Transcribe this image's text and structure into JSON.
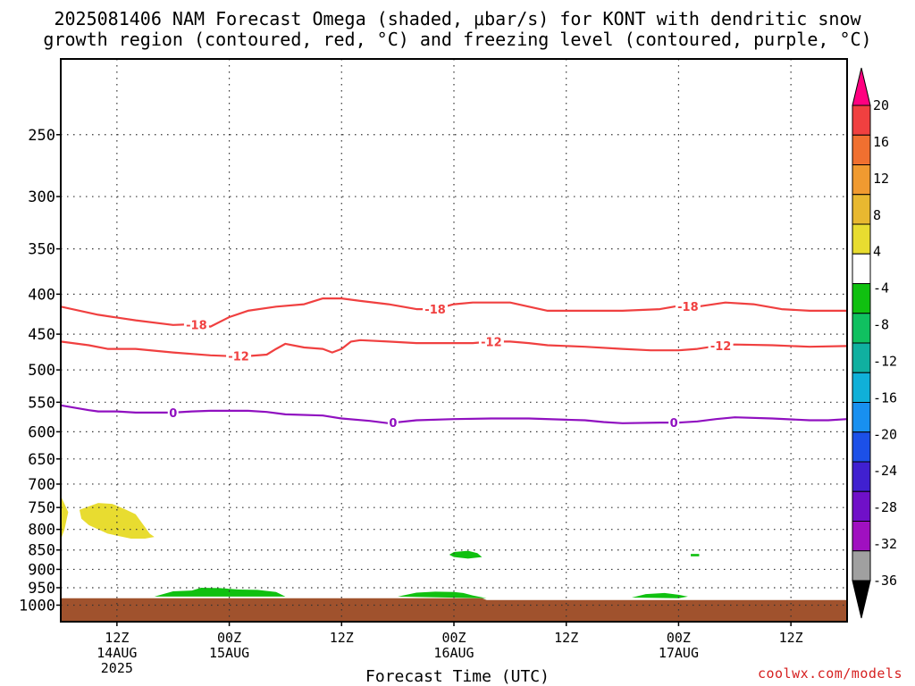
{
  "title_line1": "2025081406 NAM Forecast Omega (shaded, μbar/s) for KONT with dendritic snow",
  "title_line2": "growth region (contoured, red, °C) and freezing level (contoured, purple, °C)",
  "credit": "coolwx.com/models",
  "chart_data": {
    "type": "heatmap",
    "title": "2025081406 NAM Forecast Omega (shaded, μbar/s) for KONT with dendritic snow growth region (contoured, red, °C) and freezing level (contoured, purple, °C)",
    "xlabel": "Forecast Time (UTC)",
    "ylabel": "",
    "x_unit": "hours from 2025-08-14 06Z",
    "xlim": [
      0,
      84
    ],
    "ylim_pressure_hPa": [
      1050,
      200
    ],
    "y_scale": "log-pressure",
    "y_ticks": [
      250,
      300,
      350,
      400,
      450,
      500,
      550,
      600,
      650,
      700,
      750,
      800,
      850,
      900,
      950,
      1000
    ],
    "x_ticks": [
      {
        "hour": 6,
        "l1": "12Z",
        "l2": "14AUG",
        "l3": "2025"
      },
      {
        "hour": 18,
        "l1": "00Z",
        "l2": "15AUG",
        "l3": ""
      },
      {
        "hour": 30,
        "l1": "12Z",
        "l2": "",
        "l3": ""
      },
      {
        "hour": 42,
        "l1": "00Z",
        "l2": "16AUG",
        "l3": ""
      },
      {
        "hour": 54,
        "l1": "12Z",
        "l2": "",
        "l3": ""
      },
      {
        "hour": 66,
        "l1": "00Z",
        "l2": "17AUG",
        "l3": ""
      },
      {
        "hour": 78,
        "l1": "12Z",
        "l2": "",
        "l3": ""
      }
    ],
    "grid": true,
    "colorbar": {
      "location": "right",
      "labels": [
        "20",
        "16",
        "12",
        "8",
        "4",
        "-4",
        "-8",
        "-12",
        "-16",
        "-20",
        "-24",
        "-28",
        "-32",
        "-36"
      ],
      "colors": [
        "#ff0080",
        "#f04040",
        "#f07030",
        "#f09a30",
        "#e8b830",
        "#e8dc30",
        "#ffffff",
        "#10c010",
        "#10c060",
        "#10b0a0",
        "#10b0d8",
        "#1890f0",
        "#1c50e8",
        "#4020d0",
        "#7010c8",
        "#a010c0",
        "#a0a0a0",
        "#000000"
      ]
    },
    "contours": [
      {
        "level": -18,
        "color": "#f04040",
        "label": "-18",
        "label_hours": [
          14.5,
          40,
          67
        ],
        "points": [
          [
            0,
            415
          ],
          [
            4,
            425
          ],
          [
            8,
            432
          ],
          [
            12,
            438
          ],
          [
            14,
            437
          ],
          [
            16,
            440
          ],
          [
            18,
            428
          ],
          [
            20,
            420
          ],
          [
            23,
            415
          ],
          [
            26,
            412
          ],
          [
            28,
            405
          ],
          [
            30,
            405
          ],
          [
            32,
            408
          ],
          [
            35,
            412
          ],
          [
            38,
            418
          ],
          [
            40,
            418
          ],
          [
            42,
            412
          ],
          [
            44,
            410
          ],
          [
            46,
            410
          ],
          [
            48,
            410
          ],
          [
            50,
            415
          ],
          [
            52,
            420
          ],
          [
            56,
            420
          ],
          [
            60,
            420
          ],
          [
            64,
            418
          ],
          [
            66,
            414
          ],
          [
            68,
            415
          ],
          [
            71,
            410
          ],
          [
            74,
            412
          ],
          [
            77,
            418
          ],
          [
            80,
            420
          ],
          [
            84,
            420
          ]
        ]
      },
      {
        "level": -12,
        "color": "#f04040",
        "label": "-12",
        "label_hours": [
          19,
          46,
          70.5
        ],
        "points": [
          [
            0,
            460
          ],
          [
            3,
            465
          ],
          [
            5,
            470
          ],
          [
            8,
            470
          ],
          [
            12,
            475
          ],
          [
            16,
            479
          ],
          [
            18,
            480
          ],
          [
            20,
            480
          ],
          [
            22,
            478
          ],
          [
            23,
            470
          ],
          [
            24,
            463
          ],
          [
            26,
            468
          ],
          [
            28,
            470
          ],
          [
            29,
            475
          ],
          [
            30,
            470
          ],
          [
            31,
            460
          ],
          [
            32,
            458
          ],
          [
            35,
            460
          ],
          [
            38,
            462
          ],
          [
            42,
            462
          ],
          [
            44,
            462
          ],
          [
            46,
            460
          ],
          [
            48,
            460
          ],
          [
            50,
            462
          ],
          [
            52,
            465
          ],
          [
            56,
            467
          ],
          [
            60,
            470
          ],
          [
            63,
            472
          ],
          [
            66,
            472
          ],
          [
            68,
            470
          ],
          [
            70,
            466
          ],
          [
            72,
            464
          ],
          [
            76,
            465
          ],
          [
            80,
            467
          ],
          [
            84,
            466
          ]
        ]
      },
      {
        "level": 0,
        "color": "#9010c0",
        "label": "0",
        "label_hours": [
          12,
          35.5,
          65.5
        ],
        "points": [
          [
            0,
            555
          ],
          [
            3,
            563
          ],
          [
            4,
            565
          ],
          [
            6,
            565
          ],
          [
            8,
            567
          ],
          [
            12,
            567
          ],
          [
            14,
            565
          ],
          [
            16,
            564
          ],
          [
            20,
            564
          ],
          [
            22,
            566
          ],
          [
            24,
            570
          ],
          [
            28,
            572
          ],
          [
            30,
            577
          ],
          [
            33,
            581
          ],
          [
            35,
            585
          ],
          [
            38,
            580
          ],
          [
            42,
            578
          ],
          [
            46,
            577
          ],
          [
            50,
            577
          ],
          [
            54,
            579
          ],
          [
            56,
            580
          ],
          [
            58,
            583
          ],
          [
            60,
            585
          ],
          [
            64,
            584
          ],
          [
            66,
            584
          ],
          [
            68,
            582
          ],
          [
            70,
            578
          ],
          [
            72,
            575
          ],
          [
            76,
            577
          ],
          [
            80,
            580
          ],
          [
            82,
            580
          ],
          [
            84,
            578
          ]
        ]
      }
    ],
    "omega_regions": [
      {
        "value_range": "4 to 8",
        "color": "#e8dc30",
        "name": "region-a",
        "points": [
          [
            0,
            725
          ],
          [
            0.8,
            760
          ],
          [
            0.4,
            800
          ],
          [
            0,
            825
          ]
        ]
      },
      {
        "value_range": "4 to 8",
        "color": "#e8dc30",
        "name": "region-b",
        "points": [
          [
            2,
            755
          ],
          [
            4,
            740
          ],
          [
            5.5,
            742
          ],
          [
            7,
            755
          ],
          [
            8,
            765
          ],
          [
            9.5,
            810
          ],
          [
            10,
            818
          ],
          [
            9,
            822
          ],
          [
            7.5,
            822
          ],
          [
            5,
            810
          ],
          [
            3,
            790
          ],
          [
            2.2,
            775
          ]
        ]
      },
      {
        "value_range": "-4 to -8",
        "color": "#10c010",
        "name": "region-c",
        "points": [
          [
            42,
            855
          ],
          [
            43.5,
            852
          ],
          [
            44.5,
            858
          ],
          [
            45,
            868
          ],
          [
            43.5,
            872
          ],
          [
            42,
            868
          ],
          [
            41.5,
            862
          ]
        ]
      },
      {
        "value_range": "-4 to -8",
        "color": "#10c010",
        "name": "region-d",
        "points": [
          [
            67.3,
            860
          ],
          [
            68.2,
            860
          ],
          [
            68.2,
            866
          ],
          [
            67.3,
            866
          ]
        ]
      },
      {
        "value_range": "-4 to -8",
        "color": "#10c010",
        "name": "region-e",
        "points": [
          [
            10,
            975
          ],
          [
            12,
            960
          ],
          [
            14,
            958
          ],
          [
            15,
            950
          ],
          [
            17,
            951
          ],
          [
            19,
            955
          ],
          [
            21,
            956
          ],
          [
            23,
            962
          ],
          [
            24,
            975
          ]
        ]
      },
      {
        "value_range": "-4 to -8",
        "color": "#10c010",
        "name": "region-f",
        "points": [
          [
            36,
            975
          ],
          [
            38,
            964
          ],
          [
            40,
            961
          ],
          [
            42,
            962
          ],
          [
            43,
            965
          ],
          [
            44,
            972
          ],
          [
            45.5,
            980
          ]
        ]
      },
      {
        "value_range": "-4 to -8",
        "color": "#10c010",
        "name": "region-g",
        "points": [
          [
            61,
            978
          ],
          [
            62.5,
            968
          ],
          [
            64.5,
            965
          ],
          [
            66,
            970
          ],
          [
            67,
            975
          ],
          [
            66,
            980
          ]
        ]
      }
    ],
    "underground": {
      "color": "#a0522d",
      "surface_pressure_hPa": [
        [
          0,
          980
        ],
        [
          45,
          980
        ],
        [
          45.5,
          985
        ],
        [
          84,
          985
        ]
      ]
    }
  }
}
